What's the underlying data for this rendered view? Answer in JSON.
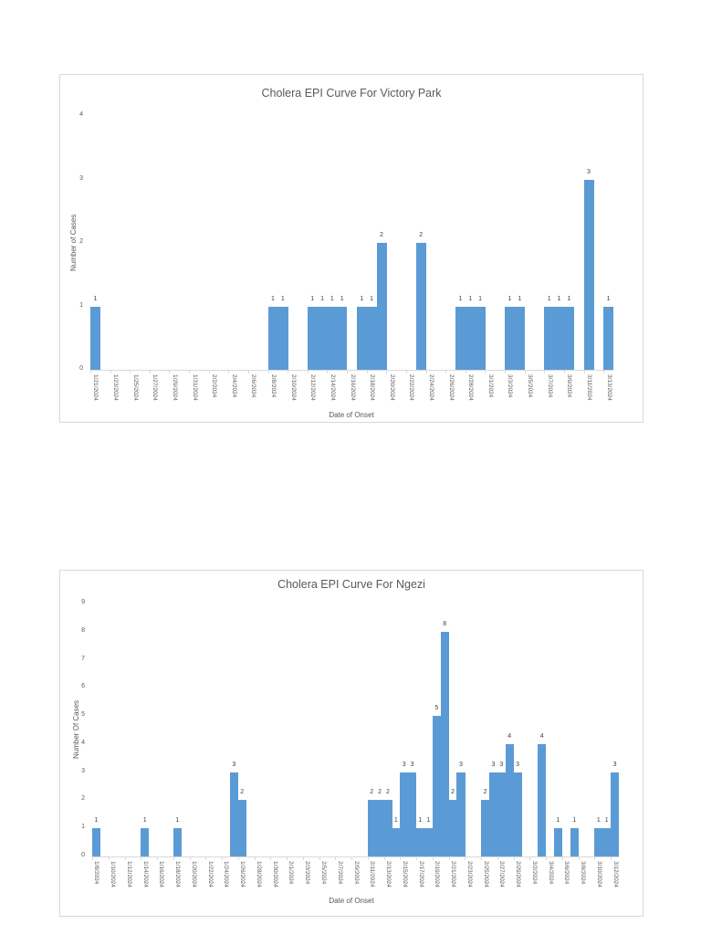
{
  "chart_data": [
    {
      "type": "bar",
      "title": "Cholera EPI Curve For Victory Park",
      "xlabel": "Date of Onset",
      "ylabel": "Number of Cases",
      "ylim": [
        0,
        4
      ],
      "yticks": [
        0,
        1,
        2,
        3,
        4
      ],
      "grid": false,
      "legend": null,
      "color": "#5b9bd5",
      "x_start": "1/21/2024",
      "x_end": "3/13/2024",
      "x_tick_labels": [
        "1/21/2024",
        "1/23/2024",
        "1/25/2024",
        "1/27/2024",
        "1/29/2024",
        "1/31/2024",
        "2/2/2024",
        "2/4/2024",
        "2/6/2024",
        "2/8/2024",
        "2/10/2024",
        "2/12/2024",
        "2/14/2024",
        "2/16/2024",
        "2/18/2024",
        "2/20/2024",
        "2/22/2024",
        "2/24/2024",
        "2/26/2024",
        "2/28/2024",
        "3/1/2024",
        "3/3/2024",
        "3/5/2024",
        "3/7/2024",
        "3/9/2024",
        "3/11/2024",
        "3/13/2024"
      ],
      "categories": [
        "1/21/2024",
        "2/8/2024",
        "2/9/2024",
        "2/12/2024",
        "2/13/2024",
        "2/14/2024",
        "2/15/2024",
        "2/17/2024",
        "2/18/2024",
        "2/19/2024",
        "2/23/2024",
        "2/27/2024",
        "2/28/2024",
        "2/29/2024",
        "3/3/2024",
        "3/4/2024",
        "3/7/2024",
        "3/8/2024",
        "3/9/2024",
        "3/11/2024",
        "3/13/2024"
      ],
      "values": [
        1,
        1,
        1,
        1,
        1,
        1,
        1,
        1,
        1,
        2,
        2,
        1,
        1,
        1,
        1,
        1,
        1,
        1,
        1,
        3,
        1
      ]
    },
    {
      "type": "bar",
      "title": "Cholera EPI Curve For Ngezi",
      "xlabel": "Date of Onset",
      "ylabel": "Number Of Cases",
      "ylim": [
        0,
        9
      ],
      "yticks": [
        0,
        1,
        2,
        3,
        4,
        5,
        6,
        7,
        8,
        9
      ],
      "grid": false,
      "legend": null,
      "color": "#5b9bd5",
      "x_start": "1/8/2024",
      "x_end": "3/12/2024",
      "x_tick_labels": [
        "1/8/2024",
        "1/10/2024",
        "1/12/2024",
        "1/14/2024",
        "1/16/2024",
        "1/18/2024",
        "1/20/2024",
        "1/22/2024",
        "1/24/2024",
        "1/26/2024",
        "1/28/2024",
        "1/30/2024",
        "2/1/2024",
        "2/3/2024",
        "2/5/2024",
        "2/7/2024",
        "2/9/2024",
        "2/11/2024",
        "2/13/2024",
        "2/15/2024",
        "2/17/2024",
        "2/19/2024",
        "2/21/2024",
        "2/23/2024",
        "2/25/2024",
        "2/27/2024",
        "2/29/2024",
        "3/2/2024",
        "3/4/2024",
        "3/6/2024",
        "3/8/2024",
        "3/10/2024",
        "3/12/2024"
      ],
      "categories": [
        "1/8/2024",
        "1/14/2024",
        "1/18/2024",
        "1/25/2024",
        "1/26/2024",
        "2/11/2024",
        "2/12/2024",
        "2/13/2024",
        "2/14/2024",
        "2/15/2024",
        "2/16/2024",
        "2/17/2024",
        "2/18/2024",
        "2/19/2024",
        "2/20/2024",
        "2/21/2024",
        "2/22/2024",
        "2/25/2024",
        "2/26/2024",
        "2/27/2024",
        "2/28/2024",
        "2/29/2024",
        "3/3/2024",
        "3/5/2024",
        "3/7/2024",
        "3/10/2024",
        "3/11/2024",
        "3/12/2024"
      ],
      "values": [
        1,
        1,
        1,
        3,
        2,
        2,
        2,
        2,
        1,
        3,
        3,
        1,
        1,
        5,
        8,
        2,
        3,
        2,
        3,
        3,
        4,
        3,
        4,
        1,
        1,
        1,
        1,
        3
      ]
    }
  ]
}
